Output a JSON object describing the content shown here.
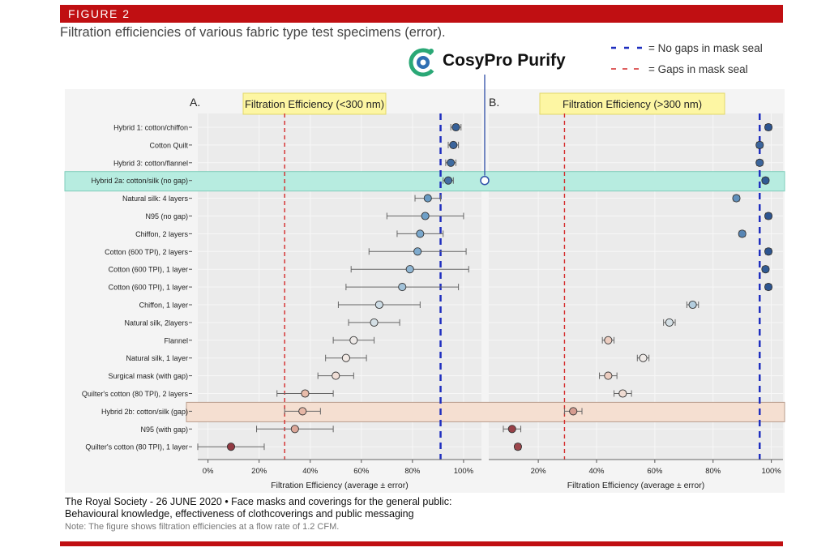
{
  "figure_label": "FIGURE 2",
  "figure_title": "Filtration efficiencies of various fabric type test specimens (error).",
  "legend": {
    "no_gaps": "= No gaps in mask seal",
    "gaps": "= Gaps in mask seal"
  },
  "logo_text": "CosyPro Purify",
  "colors": {
    "brand_red": "#c00f12",
    "no_gap_line": "#1f2fbf",
    "gap_line": "#d42a2a",
    "highlight_teal": "#b7ece0",
    "highlight_peach": "#f5dfd1",
    "panel_bg": "#ebebeb",
    "title_box": "#fdf6a3"
  },
  "footer": {
    "line1": "The Royal Society - 26 JUNE 2020 • Face masks and coverings for the general public:",
    "line2": "Behavioural knowledge, effectiveness of clothcoverings and public messaging",
    "note": "Note: The figure shows filtration efficiencies at a flow rate of 1.2 CFM."
  },
  "chart_data": [
    {
      "panel": "A.",
      "type": "scatter",
      "title": "Filtration Efficiency (<300 nm)",
      "xlabel": "Filtration Efficiency (average ± error)",
      "xticks": [
        "0%",
        "20%",
        "40%",
        "60%",
        "80%",
        "100%"
      ],
      "xlim": [
        -4,
        107
      ],
      "ref_lines": {
        "no_gaps": 91,
        "gaps": 30
      },
      "categories": [
        "Hybrid 1: cotton/chiffon",
        "Cotton Quilt",
        "Hybrid 3: cotton/flannel",
        "Hybrid 2a: cotton/silk (no gap)",
        "Natural silk: 4 layers",
        "N95 (no gap)",
        "Chiffon, 2 layers",
        "Cotton (600 TPI), 2 layers",
        "Cotton (600 TPI), 1 layer",
        "Cotton (600 TPI), 1 layer",
        "Chiffon, 1 layer",
        "Natural silk, 2layers",
        "Flannel",
        "Natural silk, 1 layer",
        "Surgical mask (with gap)",
        "Quilter's cotton (80 TPI), 2 layers",
        "Hybrid 2b: cotton/silk (gap)",
        "N95 (with gap)",
        "Quilter's cotton (80 TPI), 1 layer"
      ],
      "values": [
        97,
        96,
        95,
        94,
        86,
        85,
        83,
        82,
        79,
        76,
        67,
        65,
        57,
        54,
        50,
        38,
        37,
        34,
        9
      ],
      "errors": [
        2,
        2,
        2,
        2,
        5,
        15,
        9,
        19,
        23,
        22,
        16,
        10,
        8,
        8,
        7,
        11,
        7,
        15,
        13
      ],
      "highlighted_rows": [
        "Hybrid 2a: cotton/silk (no gap)",
        "Hybrid 2b: cotton/silk (gap)"
      ]
    },
    {
      "panel": "B.",
      "type": "scatter",
      "title": "Filtration Efficiency (>300 nm)",
      "xlabel": "Filtration Efficiency (average ± error)",
      "xticks": [
        "20%",
        "40%",
        "60%",
        "80%",
        "100%"
      ],
      "xlim": [
        3,
        104
      ],
      "ref_lines": {
        "no_gaps": 96,
        "gaps": 29
      },
      "values": [
        99,
        96,
        96,
        98,
        88,
        99,
        90,
        99,
        98,
        99,
        73,
        65,
        44,
        56,
        44,
        49,
        32,
        11,
        13
      ],
      "errors": [
        1,
        1,
        1,
        1,
        1,
        1,
        1,
        1,
        1,
        1,
        2,
        2,
        2,
        2,
        3,
        3,
        3,
        3,
        1
      ]
    }
  ]
}
